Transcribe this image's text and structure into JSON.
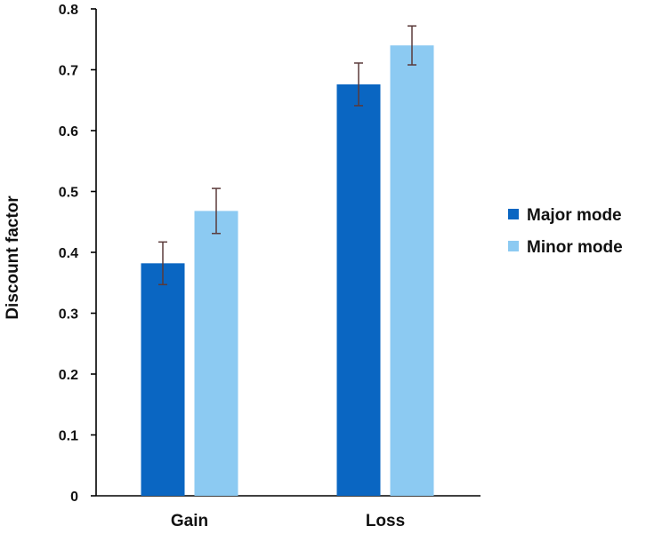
{
  "chart_data": {
    "type": "bar",
    "title": "",
    "xlabel": "",
    "ylabel": "Discount factor",
    "ylim": [
      0,
      0.8
    ],
    "yticks": [
      "0",
      "0.1",
      "0.2",
      "0.3",
      "0.4",
      "0.5",
      "0.6",
      "0.7",
      "0.8"
    ],
    "categories": [
      "Gain",
      "Loss"
    ],
    "series": [
      {
        "name": "Major mode",
        "values": [
          0.382,
          0.676
        ],
        "error": [
          0.035,
          0.035
        ],
        "color": "#0a66c2"
      },
      {
        "name": "Minor mode",
        "values": [
          0.468,
          0.74
        ],
        "error": [
          0.037,
          0.032
        ],
        "color": "#8ccaf2"
      }
    ],
    "grid": false,
    "legend_position": "right"
  }
}
